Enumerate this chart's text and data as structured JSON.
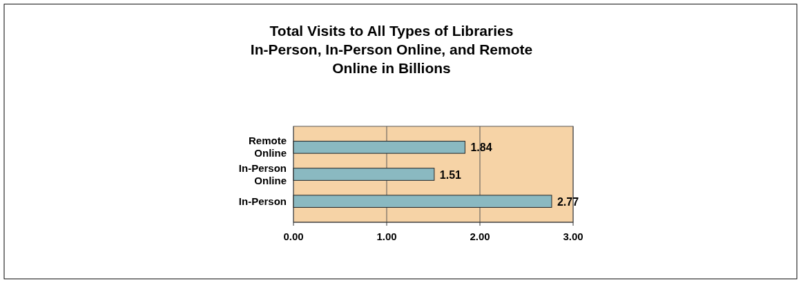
{
  "chart_data": {
    "type": "bar",
    "orientation": "horizontal",
    "title": "Total Visits to All Types of Libraries In-Person, In-Person Online, and Remote Online in Billions",
    "categories": [
      "Remote Online",
      "In-Person Online",
      "In-Person"
    ],
    "values": [
      1.84,
      1.51,
      2.77
    ],
    "color": "#8ab9c1",
    "xlim": [
      0,
      3
    ],
    "xticks": [
      {
        "value": 0,
        "label": "0.00"
      },
      {
        "value": 1,
        "label": "1.00"
      },
      {
        "value": 2,
        "label": "2.00"
      },
      {
        "value": 3,
        "label": "3.00"
      }
    ],
    "grid": "x",
    "data_labels": true
  }
}
